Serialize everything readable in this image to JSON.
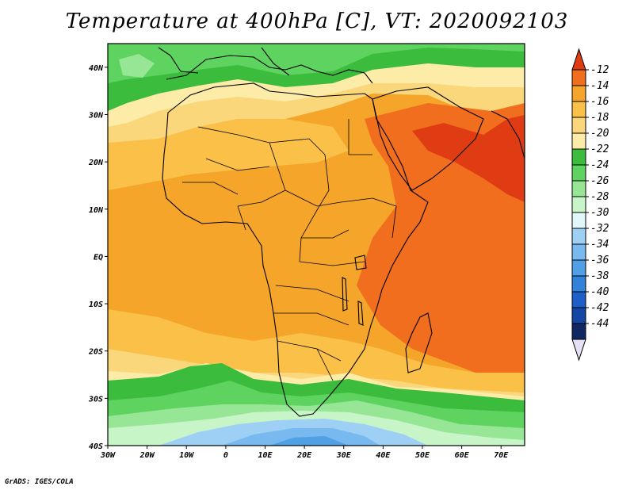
{
  "title": "Temperature at 400hPa [C], VT: 2020092103",
  "credit": "GrADS: IGES/COLA",
  "map": {
    "lon_range": [
      -30,
      76
    ],
    "lat_range": [
      -40,
      45
    ],
    "x_ticks": [
      {
        "lon": -30,
        "label": "30W"
      },
      {
        "lon": -20,
        "label": "20W"
      },
      {
        "lon": -10,
        "label": "10W"
      },
      {
        "lon": 0,
        "label": "0"
      },
      {
        "lon": 10,
        "label": "10E"
      },
      {
        "lon": 20,
        "label": "20E"
      },
      {
        "lon": 30,
        "label": "30E"
      },
      {
        "lon": 40,
        "label": "40E"
      },
      {
        "lon": 50,
        "label": "50E"
      },
      {
        "lon": 60,
        "label": "60E"
      },
      {
        "lon": 70,
        "label": "70E"
      }
    ],
    "y_ticks": [
      {
        "lat": 40,
        "label": "40N"
      },
      {
        "lat": 30,
        "label": "30N"
      },
      {
        "lat": 20,
        "label": "20N"
      },
      {
        "lat": 10,
        "label": "10N"
      },
      {
        "lat": 0,
        "label": "EQ"
      },
      {
        "lat": -10,
        "label": "10S"
      },
      {
        "lat": -20,
        "label": "20S"
      },
      {
        "lat": -30,
        "label": "30S"
      },
      {
        "lat": -40,
        "label": "40S"
      }
    ]
  },
  "colorbar": {
    "levels": [
      "-12",
      "-14",
      "-16",
      "-18",
      "-20",
      "-22",
      "-24",
      "-26",
      "-28",
      "-30",
      "-32",
      "-34",
      "-36",
      "-38",
      "-40",
      "-42",
      "-44"
    ],
    "colors": [
      "#e03c14",
      "#f06e1e",
      "#f5a52a",
      "#fac048",
      "#fad77a",
      "#fdeba8",
      "#3cbc3c",
      "#5fd35f",
      "#96e696",
      "#c8f5c8",
      "#e1f8fb",
      "#9ed0f5",
      "#78b9ef",
      "#50a0e6",
      "#3282dc",
      "#1e5fc8",
      "#1446a5",
      "#0f2864",
      "#e6e0f5"
    ]
  }
}
